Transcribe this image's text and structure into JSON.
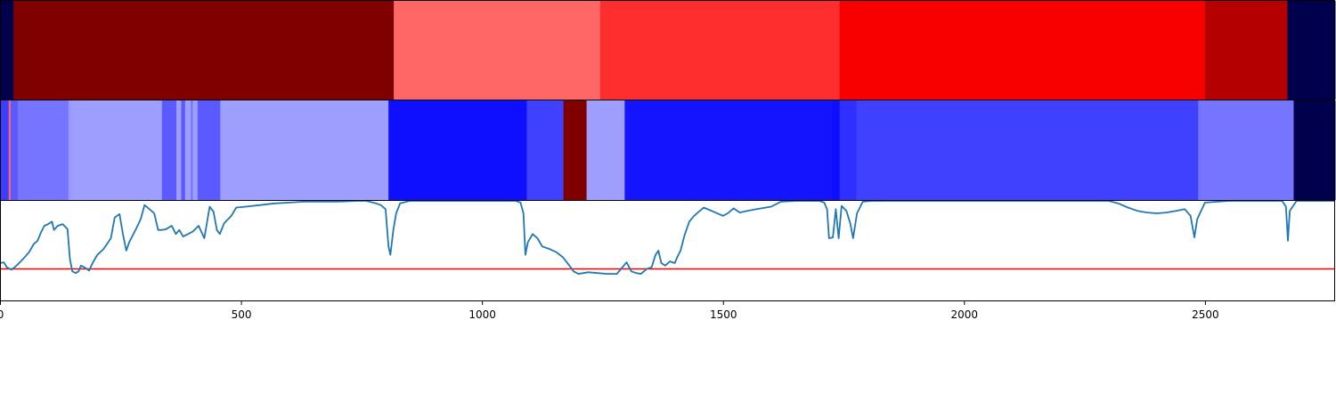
{
  "chart_data": [
    {
      "type": "heatmap",
      "xlim": [
        0,
        2770
      ],
      "colormap": "seismic",
      "segments": [
        {
          "start": 0,
          "end": 28,
          "color": "#00004c"
        },
        {
          "start": 28,
          "end": 817,
          "color": "#800000"
        },
        {
          "start": 817,
          "end": 1245,
          "color": "#ff6666"
        },
        {
          "start": 1245,
          "end": 1742,
          "color": "#ff2e2e"
        },
        {
          "start": 1742,
          "end": 2500,
          "color": "#f80000"
        },
        {
          "start": 2500,
          "end": 2671,
          "color": "#b50000"
        },
        {
          "start": 2671,
          "end": 2770,
          "color": "#00004c"
        }
      ]
    },
    {
      "type": "heatmap",
      "xlim": [
        0,
        2770
      ],
      "colormap": "seismic",
      "segments": [
        {
          "start": 0,
          "end": 18,
          "color": "#3d3dff"
        },
        {
          "start": 18,
          "end": 22,
          "color": "#ff6666"
        },
        {
          "start": 22,
          "end": 37,
          "color": "#5a5aff"
        },
        {
          "start": 37,
          "end": 142,
          "color": "#7575ff"
        },
        {
          "start": 142,
          "end": 150,
          "color": "#9999ff"
        },
        {
          "start": 150,
          "end": 336,
          "color": "#9e9eff"
        },
        {
          "start": 336,
          "end": 366,
          "color": "#5a5aff"
        },
        {
          "start": 366,
          "end": 376,
          "color": "#9e9eff"
        },
        {
          "start": 376,
          "end": 384,
          "color": "#5a5aff"
        },
        {
          "start": 384,
          "end": 396,
          "color": "#9e9eff"
        },
        {
          "start": 396,
          "end": 400,
          "color": "#7575ff"
        },
        {
          "start": 400,
          "end": 410,
          "color": "#9e9eff"
        },
        {
          "start": 410,
          "end": 457,
          "color": "#5a5aff"
        },
        {
          "start": 457,
          "end": 806,
          "color": "#9e9eff"
        },
        {
          "start": 806,
          "end": 1093,
          "color": "#0f0fff"
        },
        {
          "start": 1093,
          "end": 1169,
          "color": "#4040ff"
        },
        {
          "start": 1169,
          "end": 1217,
          "color": "#800000"
        },
        {
          "start": 1217,
          "end": 1296,
          "color": "#9e9eff"
        },
        {
          "start": 1296,
          "end": 1726,
          "color": "#1414ff"
        },
        {
          "start": 1726,
          "end": 1742,
          "color": "#0f0fff"
        },
        {
          "start": 1742,
          "end": 1777,
          "color": "#2f2fff"
        },
        {
          "start": 1777,
          "end": 2486,
          "color": "#4040ff"
        },
        {
          "start": 2486,
          "end": 2684,
          "color": "#7575ff"
        },
        {
          "start": 2684,
          "end": 2770,
          "color": "#00004c"
        }
      ]
    },
    {
      "type": "line",
      "xlim": [
        0,
        2770
      ],
      "ylim": [
        -0.2,
        1.0
      ],
      "threshold": 0.18,
      "threshold_color": "#ff0000",
      "series": [
        {
          "color": "#1f77b4",
          "points": [
            [
              0,
              0.25
            ],
            [
              8,
              0.26
            ],
            [
              14,
              0.2
            ],
            [
              24,
              0.17
            ],
            [
              36,
              0.23
            ],
            [
              48,
              0.3
            ],
            [
              60,
              0.38
            ],
            [
              70,
              0.48
            ],
            [
              78,
              0.52
            ],
            [
              85,
              0.62
            ],
            [
              92,
              0.7
            ],
            [
              100,
              0.72
            ],
            [
              108,
              0.75
            ],
            [
              112,
              0.65
            ],
            [
              120,
              0.7
            ],
            [
              130,
              0.72
            ],
            [
              140,
              0.66
            ],
            [
              145,
              0.3
            ],
            [
              150,
              0.15
            ],
            [
              157,
              0.13
            ],
            [
              163,
              0.15
            ],
            [
              168,
              0.22
            ],
            [
              175,
              0.2
            ],
            [
              185,
              0.16
            ],
            [
              192,
              0.25
            ],
            [
              202,
              0.35
            ],
            [
              215,
              0.42
            ],
            [
              230,
              0.55
            ],
            [
              238,
              0.8
            ],
            [
              248,
              0.84
            ],
            [
              255,
              0.6
            ],
            [
              262,
              0.4
            ],
            [
              268,
              0.5
            ],
            [
              275,
              0.58
            ],
            [
              283,
              0.67
            ],
            [
              292,
              0.78
            ],
            [
              300,
              0.95
            ],
            [
              310,
              0.9
            ],
            [
              320,
              0.85
            ],
            [
              328,
              0.65
            ],
            [
              336,
              0.65
            ],
            [
              345,
              0.66
            ],
            [
              356,
              0.7
            ],
            [
              365,
              0.6
            ],
            [
              372,
              0.65
            ],
            [
              380,
              0.57
            ],
            [
              390,
              0.6
            ],
            [
              400,
              0.63
            ],
            [
              412,
              0.7
            ],
            [
              424,
              0.55
            ],
            [
              435,
              0.93
            ],
            [
              443,
              0.87
            ],
            [
              450,
              0.65
            ],
            [
              456,
              0.6
            ],
            [
              465,
              0.73
            ],
            [
              480,
              0.82
            ],
            [
              490,
              0.92
            ],
            [
              510,
              0.93
            ],
            [
              540,
              0.95
            ],
            [
              570,
              0.97
            ],
            [
              600,
              0.98
            ],
            [
              630,
              0.99
            ],
            [
              660,
              0.99
            ],
            [
              700,
              0.99
            ],
            [
              740,
              1.0
            ],
            [
              760,
              1.0
            ],
            [
              780,
              0.97
            ],
            [
              790,
              0.95
            ],
            [
              800,
              0.9
            ],
            [
              806,
              0.45
            ],
            [
              810,
              0.35
            ],
            [
              816,
              0.65
            ],
            [
              822,
              0.85
            ],
            [
              830,
              0.97
            ],
            [
              850,
              1.0
            ],
            [
              1000,
              1.0
            ],
            [
              1070,
              1.0
            ],
            [
              1080,
              0.98
            ],
            [
              1086,
              0.85
            ],
            [
              1090,
              0.35
            ],
            [
              1095,
              0.5
            ],
            [
              1105,
              0.6
            ],
            [
              1115,
              0.55
            ],
            [
              1125,
              0.45
            ],
            [
              1140,
              0.42
            ],
            [
              1155,
              0.38
            ],
            [
              1168,
              0.32
            ],
            [
              1180,
              0.23
            ],
            [
              1190,
              0.15
            ],
            [
              1200,
              0.12
            ],
            [
              1220,
              0.14
            ],
            [
              1240,
              0.13
            ],
            [
              1260,
              0.12
            ],
            [
              1280,
              0.12
            ],
            [
              1300,
              0.26
            ],
            [
              1310,
              0.15
            ],
            [
              1320,
              0.13
            ],
            [
              1330,
              0.12
            ],
            [
              1342,
              0.18
            ],
            [
              1352,
              0.2
            ],
            [
              1360,
              0.35
            ],
            [
              1366,
              0.4
            ],
            [
              1372,
              0.25
            ],
            [
              1380,
              0.22
            ],
            [
              1390,
              0.27
            ],
            [
              1400,
              0.25
            ],
            [
              1405,
              0.32
            ],
            [
              1412,
              0.4
            ],
            [
              1420,
              0.58
            ],
            [
              1430,
              0.75
            ],
            [
              1440,
              0.82
            ],
            [
              1460,
              0.92
            ],
            [
              1480,
              0.87
            ],
            [
              1500,
              0.82
            ],
            [
              1510,
              0.85
            ],
            [
              1522,
              0.91
            ],
            [
              1535,
              0.86
            ],
            [
              1550,
              0.88
            ],
            [
              1570,
              0.9
            ],
            [
              1600,
              0.93
            ],
            [
              1620,
              0.99
            ],
            [
              1650,
              1.0
            ],
            [
              1700,
              1.0
            ],
            [
              1710,
              0.98
            ],
            [
              1716,
              0.9
            ],
            [
              1720,
              0.55
            ],
            [
              1728,
              0.56
            ],
            [
              1734,
              0.9
            ],
            [
              1740,
              0.55
            ],
            [
              1746,
              0.94
            ],
            [
              1756,
              0.88
            ],
            [
              1764,
              0.73
            ],
            [
              1770,
              0.55
            ],
            [
              1778,
              0.85
            ],
            [
              1790,
              0.99
            ],
            [
              1810,
              1.0
            ],
            [
              2000,
              1.0
            ],
            [
              2300,
              1.0
            ],
            [
              2320,
              0.97
            ],
            [
              2340,
              0.92
            ],
            [
              2360,
              0.88
            ],
            [
              2380,
              0.86
            ],
            [
              2400,
              0.85
            ],
            [
              2420,
              0.86
            ],
            [
              2440,
              0.88
            ],
            [
              2458,
              0.9
            ],
            [
              2470,
              0.82
            ],
            [
              2478,
              0.56
            ],
            [
              2484,
              0.78
            ],
            [
              2500,
              0.98
            ],
            [
              2550,
              1.0
            ],
            [
              2660,
              1.0
            ],
            [
              2668,
              0.93
            ],
            [
              2672,
              0.52
            ],
            [
              2676,
              0.88
            ],
            [
              2690,
              1.0
            ],
            [
              2770,
              1.0
            ]
          ]
        }
      ],
      "xticks": [
        {
          "value": 0,
          "label": "0"
        },
        {
          "value": 500,
          "label": "500"
        },
        {
          "value": 1000,
          "label": "1000"
        },
        {
          "value": 1500,
          "label": "1500"
        },
        {
          "value": 2000,
          "label": "2000"
        },
        {
          "value": 2500,
          "label": "2500"
        }
      ]
    }
  ]
}
